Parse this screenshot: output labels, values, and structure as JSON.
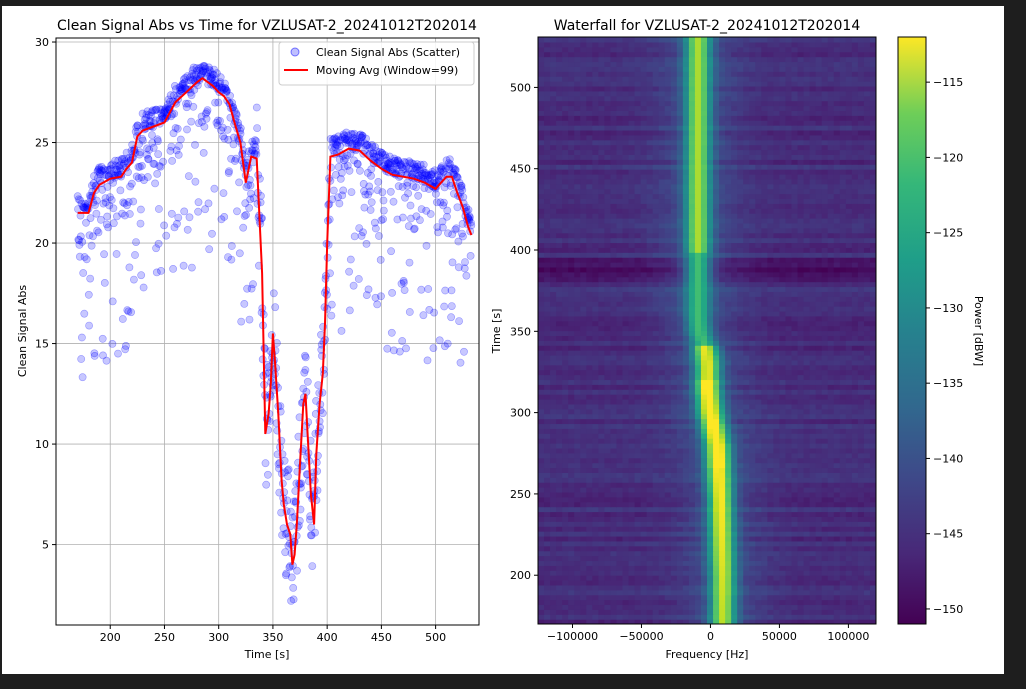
{
  "colors": {
    "page_background": "#1e1e1e",
    "figure_background": "#ffffff",
    "scatter": "#0000ff",
    "moving_avg": "#ff0000",
    "grid": "#b0b0b0"
  },
  "chart_data": [
    {
      "type": "scatter",
      "title": "Clean Signal Abs vs Time for VZLUSAT-2_20241012T202014",
      "xlabel": "Time [s]",
      "ylabel": "Clean Signal Abs",
      "xlim": [
        150,
        540
      ],
      "ylim": [
        1,
        30.2
      ],
      "xticks": [
        200,
        250,
        300,
        350,
        400,
        450,
        500
      ],
      "yticks": [
        5,
        10,
        15,
        20,
        25,
        30
      ],
      "grid": true,
      "legend_position": "top-right",
      "series": [
        {
          "name": "Clean Signal Abs (Scatter)",
          "kind": "scatter",
          "color": "#0000ff",
          "x_range": [
            170,
            533
          ]
        },
        {
          "name": "Moving Avg (Window=99)",
          "kind": "line",
          "color": "#ff0000",
          "x": [
            170,
            180,
            185,
            190,
            200,
            210,
            215,
            220,
            225,
            230,
            240,
            250,
            255,
            260,
            270,
            280,
            285,
            290,
            295,
            300,
            305,
            310,
            315,
            320,
            325,
            330,
            335,
            340,
            343,
            346,
            348,
            350,
            352,
            355,
            358,
            360,
            363,
            366,
            368,
            370,
            372,
            375,
            378,
            380,
            382,
            385,
            388,
            390,
            393,
            396,
            398,
            400,
            403,
            410,
            420,
            430,
            440,
            450,
            460,
            470,
            480,
            490,
            500,
            505,
            510,
            515,
            520,
            525,
            530,
            533
          ],
          "y": [
            21.5,
            21.5,
            22.5,
            22.9,
            23.2,
            23.3,
            23.7,
            24.0,
            25.3,
            25.6,
            25.8,
            26.0,
            26.5,
            27.0,
            27.5,
            28.0,
            28.2,
            28.0,
            27.8,
            27.5,
            27.3,
            26.9,
            25.9,
            25.0,
            23.0,
            24.3,
            24.2,
            18.5,
            10.5,
            11.5,
            13.0,
            15.5,
            14.0,
            11.5,
            8.2,
            7.0,
            6.0,
            5.5,
            4.0,
            4.5,
            6.0,
            9.0,
            12.0,
            12.5,
            10.5,
            7.5,
            6.0,
            9.5,
            12.0,
            13.5,
            16.0,
            20.0,
            24.3,
            24.4,
            24.7,
            24.6,
            24.1,
            23.7,
            23.4,
            23.3,
            23.2,
            23.0,
            22.7,
            23.0,
            23.3,
            23.3,
            22.5,
            21.8,
            20.8,
            20.4
          ]
        }
      ]
    },
    {
      "type": "heatmap",
      "title": "Waterfall for VZLUSAT-2_20241012T202014",
      "xlabel": "Frequency [Hz]",
      "ylabel": "Time [s]",
      "xlim": [
        -125000,
        120000
      ],
      "ylim": [
        170,
        531
      ],
      "xticks": [
        -100000,
        -50000,
        0,
        50000,
        100000
      ],
      "yticks": [
        200,
        250,
        300,
        350,
        400,
        450,
        500
      ],
      "colorbar": {
        "label": "Power [dBW]",
        "range": [
          -151,
          -112
        ],
        "ticks": [
          -115,
          -120,
          -125,
          -130,
          -135,
          -140,
          -145,
          -150
        ],
        "colormap": "viridis"
      },
      "signal_track": {
        "time": [
          170,
          200,
          250,
          280,
          300,
          315,
          330,
          340,
          350,
          360,
          400,
          450,
          500,
          531
        ],
        "frequency": [
          9000,
          9000,
          7000,
          5000,
          0,
          -2000,
          -2000,
          -4000,
          -8000,
          -9000,
          -9000,
          -9000,
          -9000,
          -9000
        ]
      }
    }
  ]
}
